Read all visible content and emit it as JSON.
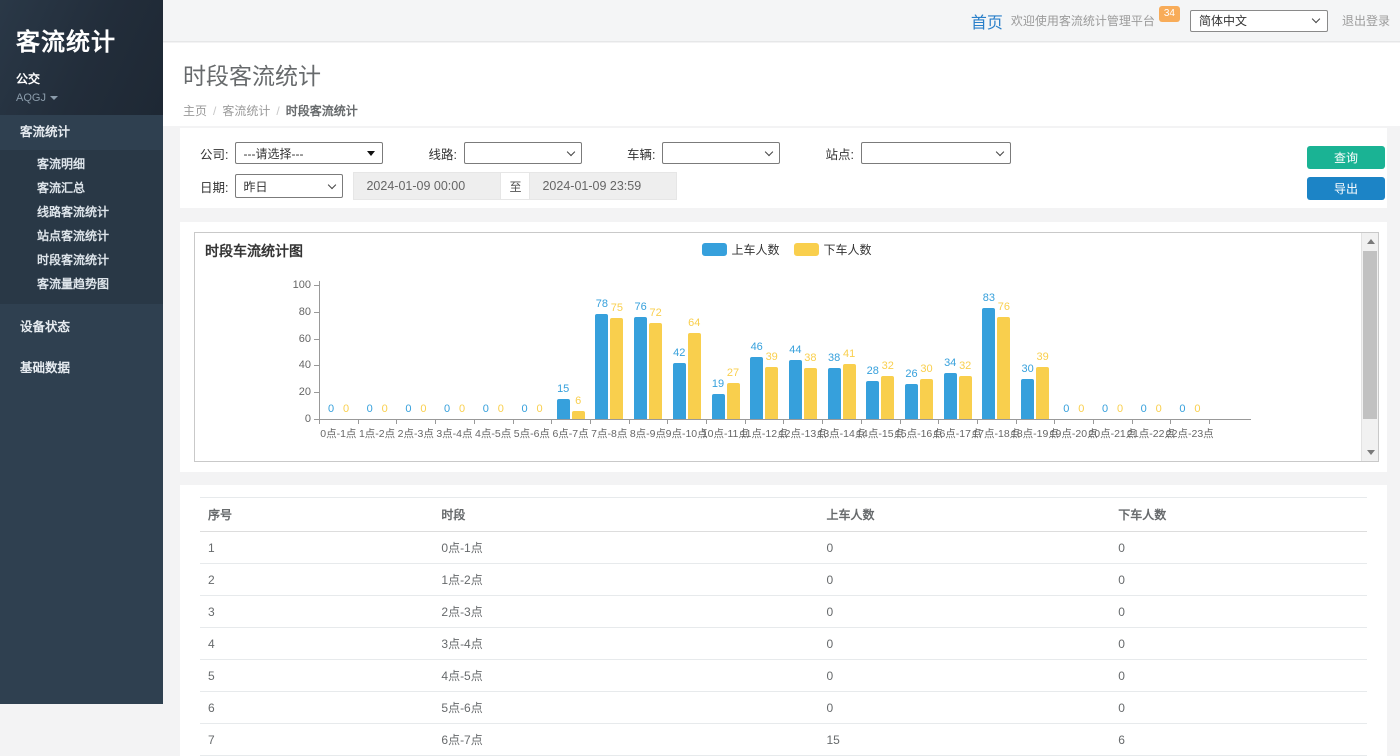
{
  "sidebar": {
    "app_title": "客流统计",
    "org": "公交",
    "user": "AQGJ",
    "menu": [
      {
        "label": "客流统计",
        "active": true,
        "children": [
          "客流明细",
          "客流汇总",
          "线路客流统计",
          "站点客流统计",
          "时段客流统计",
          "客流量趋势图"
        ]
      },
      {
        "label": "设备状态",
        "children": []
      },
      {
        "label": "基础数据",
        "children": []
      }
    ]
  },
  "topbar": {
    "home": "首页",
    "welcome": "欢迎使用客流统计管理平台",
    "badge": "34",
    "language": "简体中文",
    "logout": "退出登录",
    "badge_color": "#f8ac59",
    "home_color": "#2a7fc9"
  },
  "page": {
    "title": "时段客流统计",
    "breadcrumb": [
      "主页",
      "客流统计",
      "时段客流统计"
    ]
  },
  "filters": {
    "company_label": "公司:",
    "company_value": "---请选择---",
    "line_label": "线路:",
    "vehicle_label": "车辆:",
    "station_label": "站点:",
    "date_label": "日期:",
    "date_preset": "昨日",
    "date_from": "2024-01-09 00:00",
    "date_separator": "至",
    "date_to": "2024-01-09 23:59",
    "search_button": "查询",
    "export_button": "导出",
    "search_color": "#1ab394",
    "export_color": "#1c84c6"
  },
  "chart_data": {
    "type": "bar",
    "title": "时段车流统计图",
    "categories": [
      "0点-1点",
      "1点-2点",
      "2点-3点",
      "3点-4点",
      "4点-5点",
      "5点-6点",
      "6点-7点",
      "7点-8点",
      "8点-9点",
      "9点-10点",
      "10点-11点",
      "11点-12点",
      "12点-13点",
      "13点-14点",
      "14点-15点",
      "15点-16点",
      "16点-17点",
      "17点-18点",
      "18点-19点",
      "19点-20点",
      "20点-21点",
      "21点-22点",
      "22点-23点"
    ],
    "series": [
      {
        "name": "上车人数",
        "color": "#36a0dc",
        "values": [
          0,
          0,
          0,
          0,
          0,
          0,
          15,
          78,
          76,
          42,
          19,
          46,
          44,
          38,
          28,
          26,
          34,
          83,
          30,
          0,
          0,
          0,
          0
        ]
      },
      {
        "name": "下车人数",
        "color": "#f9cf4d",
        "values": [
          0,
          0,
          0,
          0,
          0,
          0,
          6,
          75,
          72,
          64,
          27,
          39,
          38,
          41,
          32,
          30,
          32,
          76,
          39,
          0,
          0,
          0,
          0
        ]
      }
    ],
    "ylim": [
      0,
      100
    ],
    "yticks": [
      0,
      20,
      40,
      60,
      80,
      100
    ],
    "grid": false,
    "legend_position": "top-center"
  },
  "table": {
    "headers": [
      "序号",
      "时段",
      "上车人数",
      "下车人数"
    ],
    "rows": [
      [
        "1",
        "0点-1点",
        "0",
        "0"
      ],
      [
        "2",
        "1点-2点",
        "0",
        "0"
      ],
      [
        "3",
        "2点-3点",
        "0",
        "0"
      ],
      [
        "4",
        "3点-4点",
        "0",
        "0"
      ],
      [
        "5",
        "4点-5点",
        "0",
        "0"
      ],
      [
        "6",
        "5点-6点",
        "0",
        "0"
      ],
      [
        "7",
        "6点-7点",
        "15",
        "6"
      ]
    ]
  }
}
